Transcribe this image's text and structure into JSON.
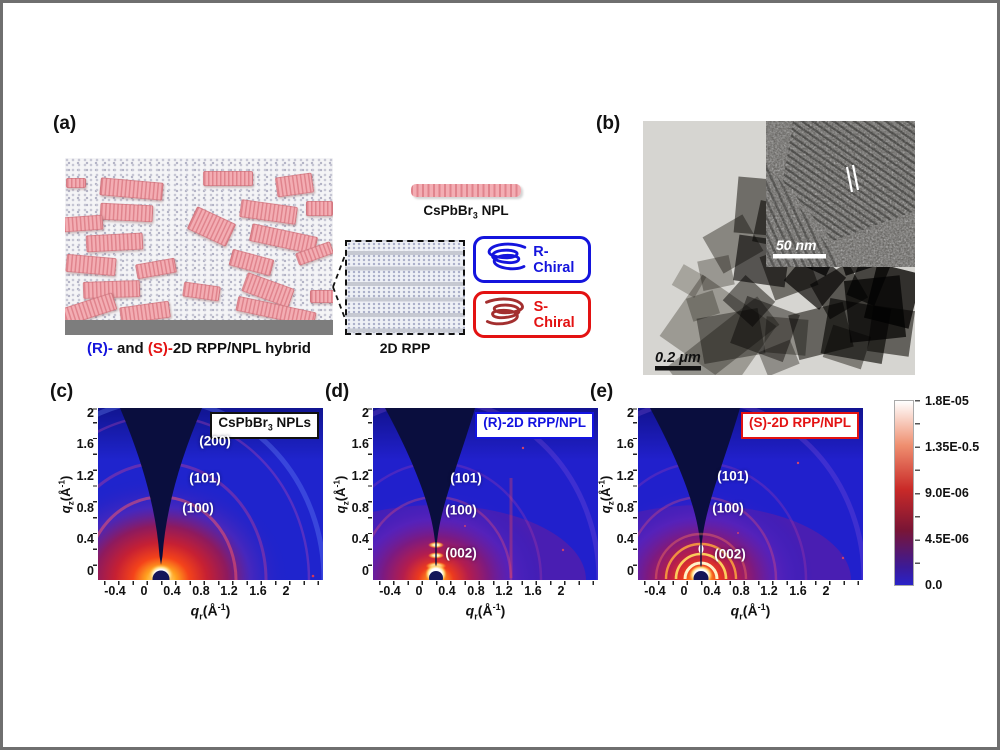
{
  "panel_a": {
    "label": "(a)",
    "caption": {
      "r": "(R)-",
      "mid": " and ",
      "s": "(S)-",
      "rest": "2D RPP/NPL hybrid"
    },
    "npl": {
      "pre": "CsPbBr",
      "sub": "3",
      "post": " NPL"
    },
    "rpp_label": "2D RPP",
    "chiral_r": "R- Chiral",
    "chiral_s": "S- Chiral",
    "colors": {
      "r_chiral_blue": "#1414dd",
      "s_chiral_red": "#e31212",
      "npl_pink": "#f0a3a9"
    }
  },
  "panel_b": {
    "label": "(b)",
    "scale_main": "0.2 μm",
    "scale_inset": "50 nm"
  },
  "giwaxs": {
    "xticks": [
      "-0.4",
      "0",
      "0.4",
      "0.8",
      "1.2",
      "1.6",
      "2"
    ],
    "yticks": [
      "2",
      "1.6",
      "1.2",
      "0.8",
      "0.4",
      "0"
    ],
    "xlabel": {
      "sym": "q",
      "sub": "r",
      "u1": "(Å",
      "sup": "-1",
      "u2": ")"
    },
    "ylabel": {
      "sym": "q",
      "sub": "z",
      "u1": "(Å",
      "sup": "-1",
      "u2": ")"
    },
    "panels": [
      {
        "label": "(c)",
        "title": {
          "pre": "CsPbBr",
          "sub": "3",
          "post": " NPLs"
        },
        "title_color": "#111111",
        "rings": [
          "(200)",
          "(101)",
          "(100)"
        ]
      },
      {
        "label": "(d)",
        "title": {
          "pre": "(R)-2D RPP/NPL",
          "sub": "",
          "post": ""
        },
        "title_color": "#1212e0",
        "rings": [
          "(101)",
          "(100)",
          "(002)"
        ]
      },
      {
        "label": "(e)",
        "title": {
          "pre": "(S)-2D RPP/NPL",
          "sub": "",
          "post": ""
        },
        "title_color": "#e31212",
        "rings": [
          "(101)",
          "(100)",
          "(002)"
        ]
      }
    ],
    "colorbar": {
      "labels": [
        "1.8E-05",
        "1.35E-0.5",
        "9.0E-06",
        "4.5E-06",
        "0.0"
      ]
    }
  }
}
